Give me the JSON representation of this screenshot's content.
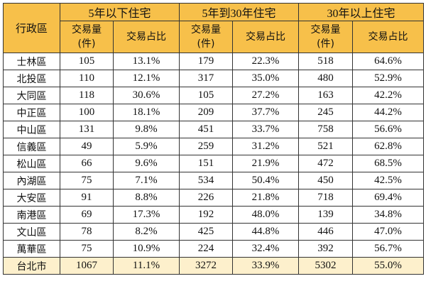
{
  "header": {
    "district_label": "行政區",
    "groups": [
      "5年以下住宅",
      "5年到30年住宅",
      "30年以上住宅"
    ],
    "volume_label_line1": "交易量",
    "volume_label_line2": "(件)",
    "share_label": "交易占比"
  },
  "rows": [
    {
      "district": "士林區",
      "v1": "105",
      "s1": "13.1%",
      "v2": "179",
      "s2": "22.3%",
      "v3": "518",
      "s3": "64.6%"
    },
    {
      "district": "北投區",
      "v1": "110",
      "s1": "12.1%",
      "v2": "317",
      "s2": "35.0%",
      "v3": "480",
      "s3": "52.9%"
    },
    {
      "district": "大同區",
      "v1": "118",
      "s1": "30.6%",
      "v2": "105",
      "s2": "27.2%",
      "v3": "163",
      "s3": "42.2%"
    },
    {
      "district": "中正區",
      "v1": "100",
      "s1": "18.1%",
      "v2": "209",
      "s2": "37.7%",
      "v3": "245",
      "s3": "44.2%"
    },
    {
      "district": "中山區",
      "v1": "131",
      "s1": "9.8%",
      "v2": "451",
      "s2": "33.7%",
      "v3": "758",
      "s3": "56.6%"
    },
    {
      "district": "信義區",
      "v1": "49",
      "s1": "5.9%",
      "v2": "259",
      "s2": "31.2%",
      "v3": "521",
      "s3": "62.8%"
    },
    {
      "district": "松山區",
      "v1": "66",
      "s1": "9.6%",
      "v2": "151",
      "s2": "21.9%",
      "v3": "472",
      "s3": "68.5%"
    },
    {
      "district": "內湖區",
      "v1": "75",
      "s1": "7.1%",
      "v2": "534",
      "s2": "50.4%",
      "v3": "450",
      "s3": "42.5%"
    },
    {
      "district": "大安區",
      "v1": "91",
      "s1": "8.8%",
      "v2": "226",
      "s2": "21.8%",
      "v3": "718",
      "s3": "69.4%"
    },
    {
      "district": "南港區",
      "v1": "69",
      "s1": "17.3%",
      "v2": "192",
      "s2": "48.0%",
      "v3": "139",
      "s3": "34.8%"
    },
    {
      "district": "文山區",
      "v1": "78",
      "s1": "8.2%",
      "v2": "425",
      "s2": "44.8%",
      "v3": "446",
      "s3": "47.0%"
    },
    {
      "district": "萬華區",
      "v1": "75",
      "s1": "10.9%",
      "v2": "224",
      "s2": "32.4%",
      "v3": "392",
      "s3": "56.7%"
    }
  ],
  "total": {
    "district": "台北市",
    "v1": "1067",
    "s1": "11.1%",
    "v2": "3272",
    "s2": "33.9%",
    "v3": "5302",
    "s3": "55.0%"
  },
  "colors": {
    "header_bg": "#f7c04a",
    "total_row_bg": "#fdf0cc",
    "border": "#333333"
  }
}
